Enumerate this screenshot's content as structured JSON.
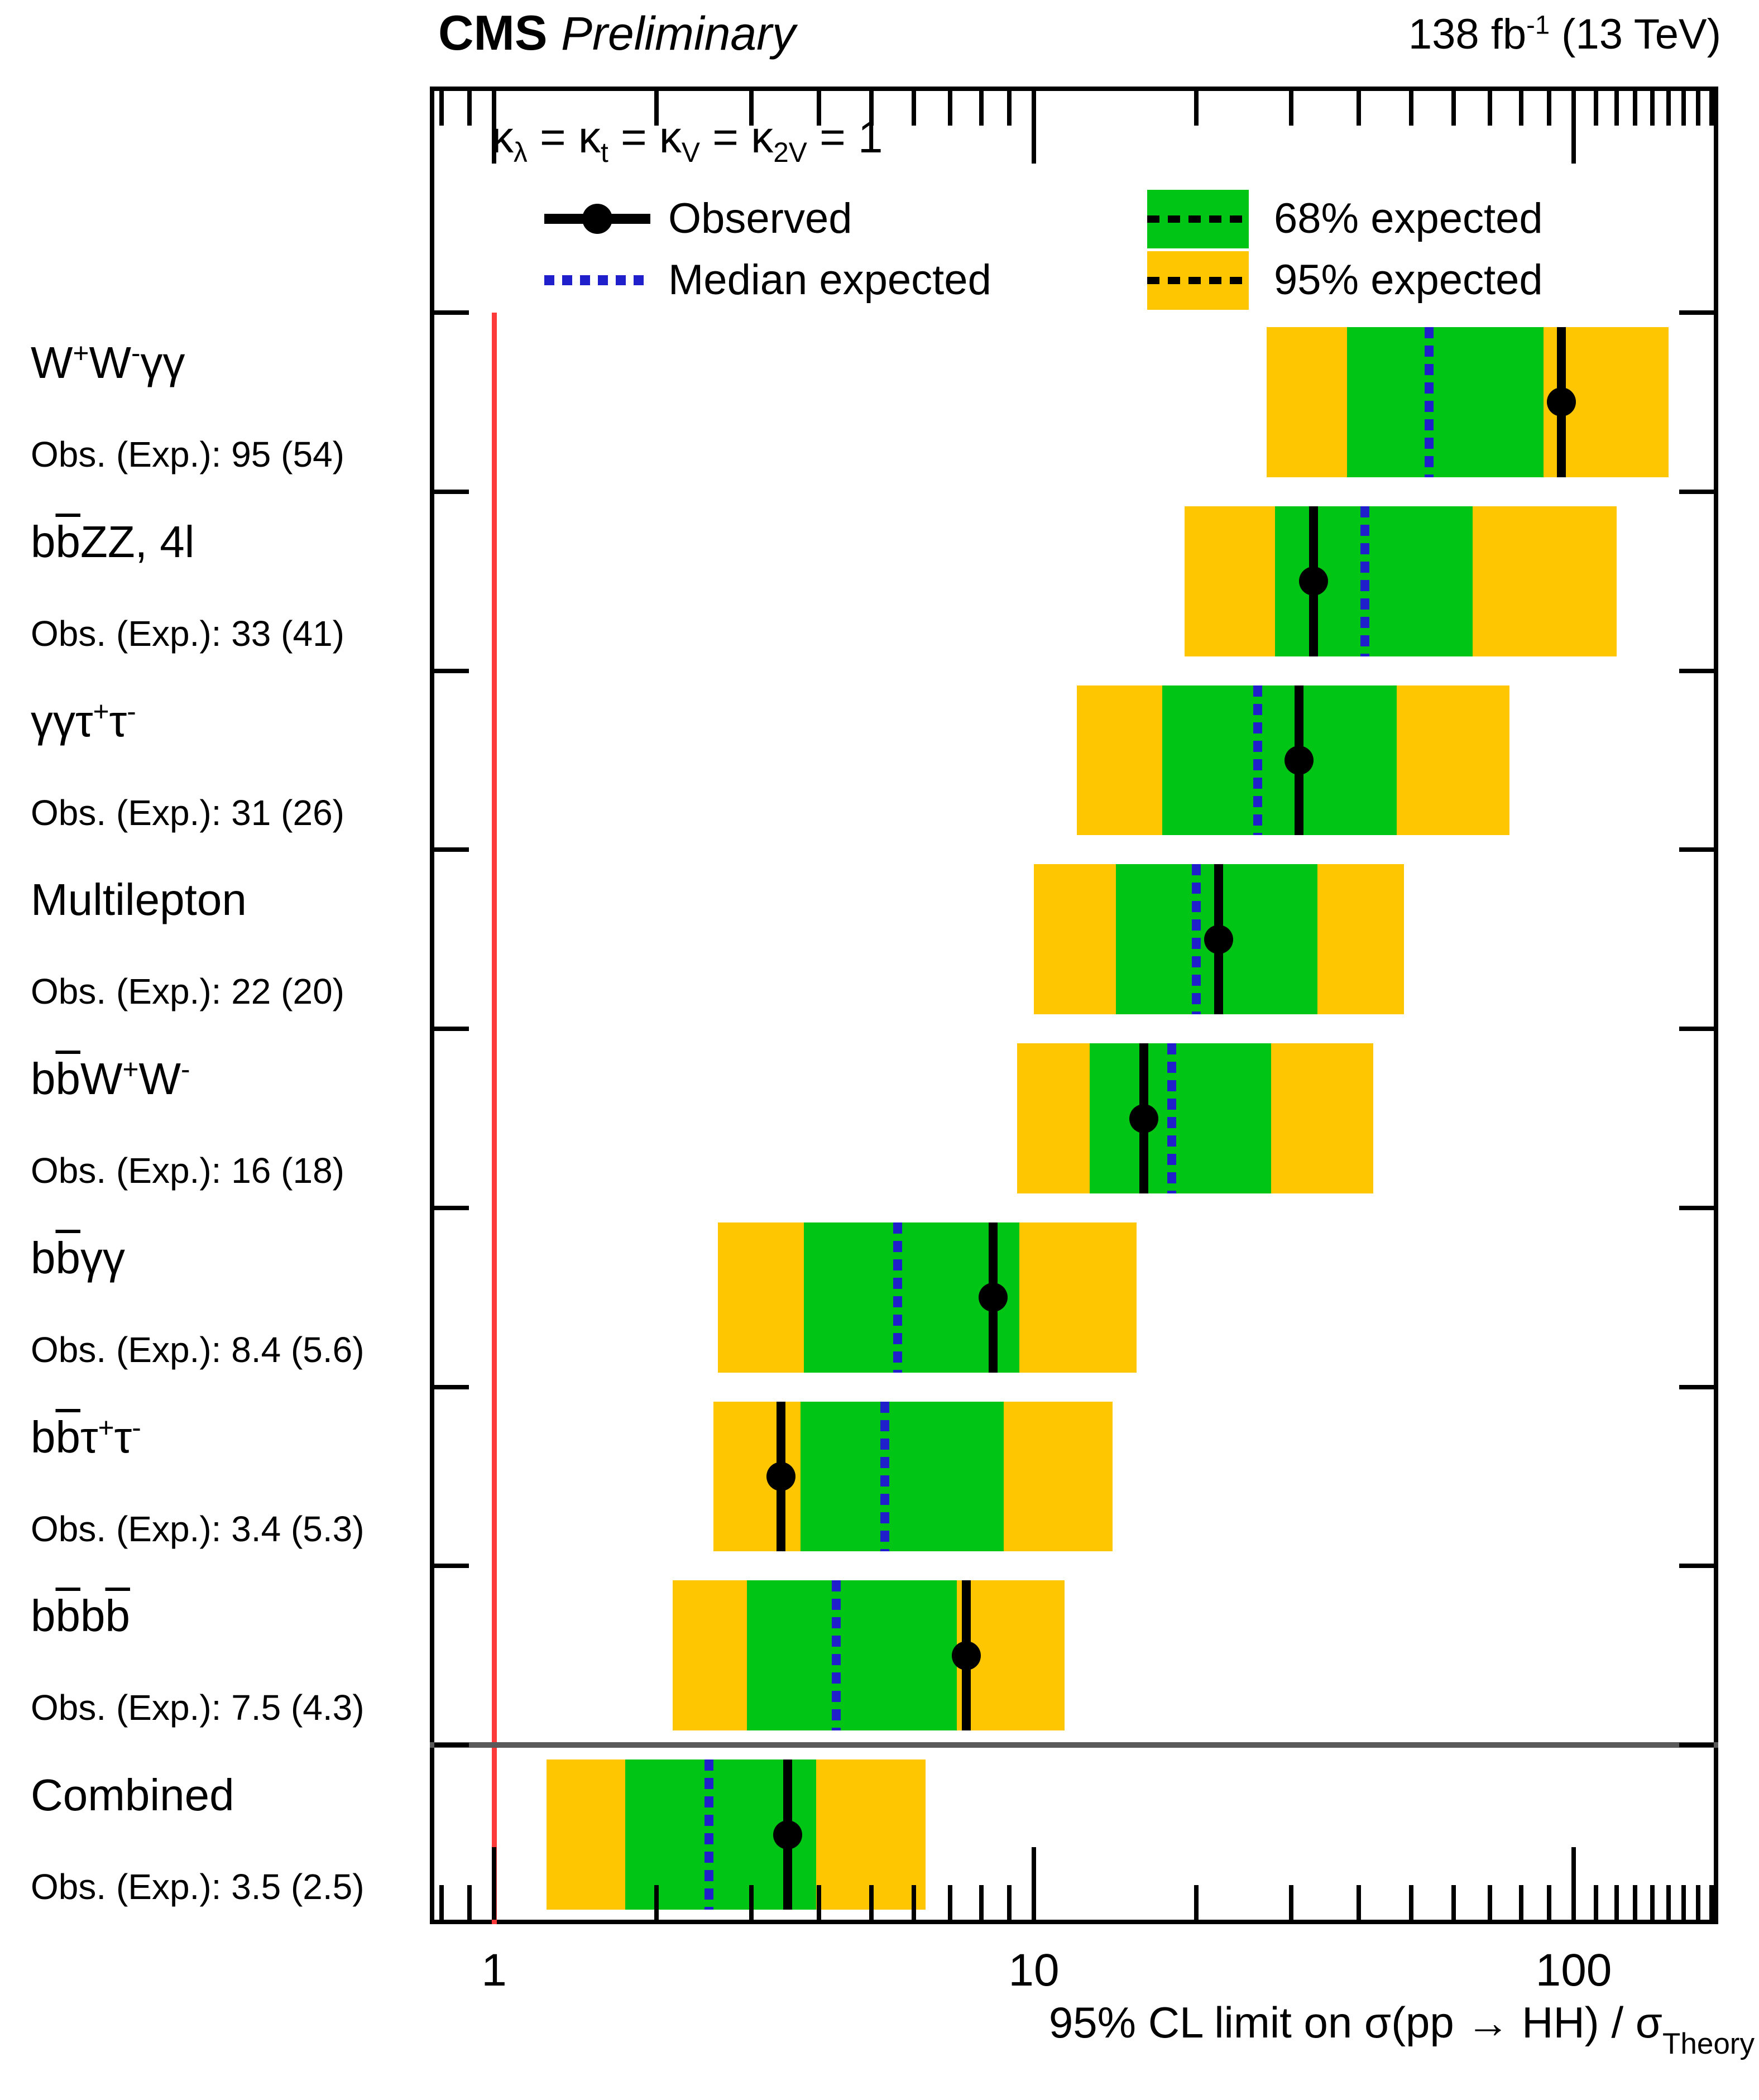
{
  "header": {
    "experiment": "CMS",
    "status": "Preliminary",
    "lumi": "138 fb^{-1} (13 TeV)"
  },
  "legend": {
    "scenario": "κ_{λ} = κ_{t} = κ_{V} = κ_{2V} = 1",
    "observed_label": "Observed",
    "median_label": "Median expected",
    "band68_label": "68% expected",
    "band95_label": "95% expected"
  },
  "colors": {
    "band68": "#00c514",
    "band95": "#fdc600",
    "median": "#1f1fcc",
    "observed": "#000000",
    "reference": "#fd3a3a",
    "separator": "#5a5a5a"
  },
  "chart_data": {
    "type": "bar",
    "orientation": "horizontal-interval",
    "xlabel": "95% CL limit on σ(pp → HH) / σ_{Theory}",
    "x_scale": "log",
    "x_range": [
      0.76,
      185
    ],
    "x_major_ticks": [
      {
        "value": 1,
        "label": "1"
      },
      {
        "value": 10,
        "label": "10"
      },
      {
        "value": 100,
        "label": "100"
      }
    ],
    "reference_line_value": 1,
    "legend_position": "top-inside",
    "grid": false,
    "rows": [
      {
        "channel": "W^{+}W^{-}γγ",
        "obs_exp_label": "Obs. (Exp.): 95 (54)",
        "obs": 95,
        "exp": 54,
        "band68": [
          38,
          88
        ],
        "band95": [
          27,
          150
        ],
        "separator_above": false
      },
      {
        "channel": "b~{b}ZZ, 4l",
        "obs_exp_label": "Obs. (Exp.): 33 (41)",
        "obs": 33,
        "exp": 41,
        "band68": [
          28,
          65
        ],
        "band95": [
          19,
          120
        ],
        "separator_above": false
      },
      {
        "channel": "γγτ^{+}τ^{-}",
        "obs_exp_label": "Obs. (Exp.): 31 (26)",
        "obs": 31,
        "exp": 26,
        "band68": [
          17.3,
          47
        ],
        "band95": [
          12,
          76
        ],
        "separator_above": false
      },
      {
        "channel": "Multilepton",
        "obs_exp_label": "Obs. (Exp.): 22 (20)",
        "obs": 22,
        "exp": 20,
        "band68": [
          14.2,
          33.5
        ],
        "band95": [
          10,
          48.5
        ],
        "separator_above": false
      },
      {
        "channel": "b~{b}W^{+}W^{-}",
        "obs_exp_label": "Obs. (Exp.): 16 (18)",
        "obs": 16,
        "exp": 18,
        "band68": [
          12.7,
          27.5
        ],
        "band95": [
          9.3,
          42.5
        ],
        "separator_above": false
      },
      {
        "channel": "b~{b}γγ",
        "obs_exp_label": "Obs. (Exp.): 8.4 (5.6)",
        "obs": 8.4,
        "exp": 5.6,
        "band68": [
          3.75,
          9.4
        ],
        "band95": [
          2.6,
          15.5
        ],
        "separator_above": false
      },
      {
        "channel": "b~{b}τ^{+}τ^{-}",
        "obs_exp_label": "Obs. (Exp.): 3.4 (5.3)",
        "obs": 3.4,
        "exp": 5.3,
        "band68": [
          3.7,
          8.8
        ],
        "band95": [
          2.55,
          14
        ],
        "separator_above": false
      },
      {
        "channel": "b~{b}b~{b}",
        "obs_exp_label": "Obs. (Exp.): 7.5 (4.3)",
        "obs": 7.5,
        "exp": 4.3,
        "band68": [
          2.94,
          7.2
        ],
        "band95": [
          2.14,
          11.4
        ],
        "separator_above": false
      },
      {
        "channel": "Combined",
        "obs_exp_label": "Obs. (Exp.): 3.5 (2.5)",
        "obs": 3.5,
        "exp": 2.5,
        "band68": [
          1.75,
          3.95
        ],
        "band95": [
          1.25,
          6.3
        ],
        "separator_above": true
      }
    ]
  }
}
